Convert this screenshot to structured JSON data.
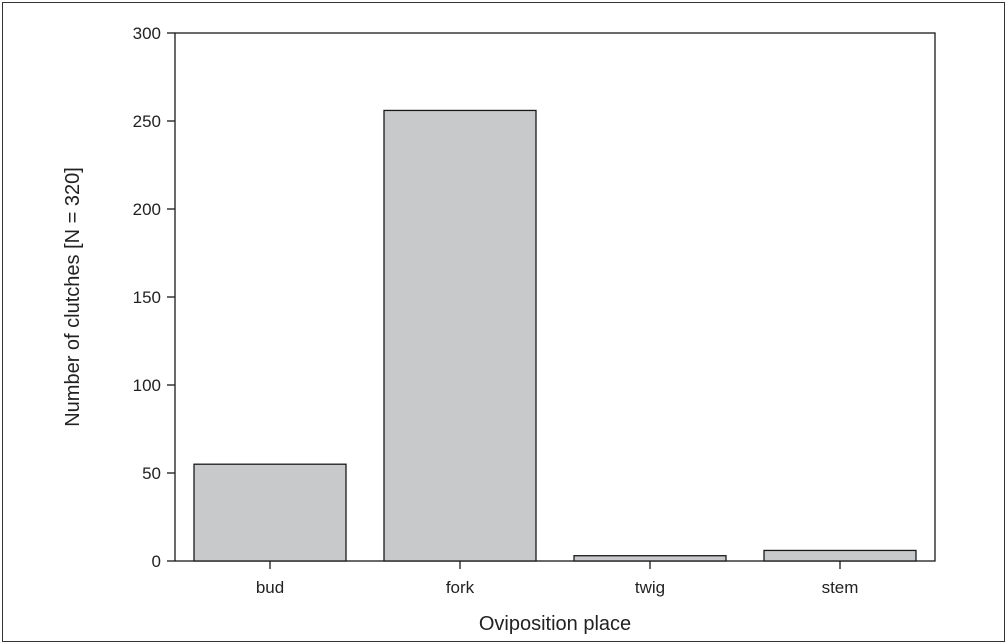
{
  "chart_data": {
    "type": "bar",
    "categories": [
      "bud",
      "fork",
      "twig",
      "stem"
    ],
    "values": [
      55,
      256,
      3,
      6
    ],
    "title": "",
    "xlabel": "Oviposition place",
    "ylabel": "Number of clutches [N = 320]",
    "ylim": [
      0,
      300
    ],
    "yticks": [
      0,
      50,
      100,
      150,
      200,
      250,
      300
    ],
    "grid": false,
    "legend": "none",
    "bar_color": "#c8c9cb",
    "edge_color": "#1a1a1a"
  }
}
